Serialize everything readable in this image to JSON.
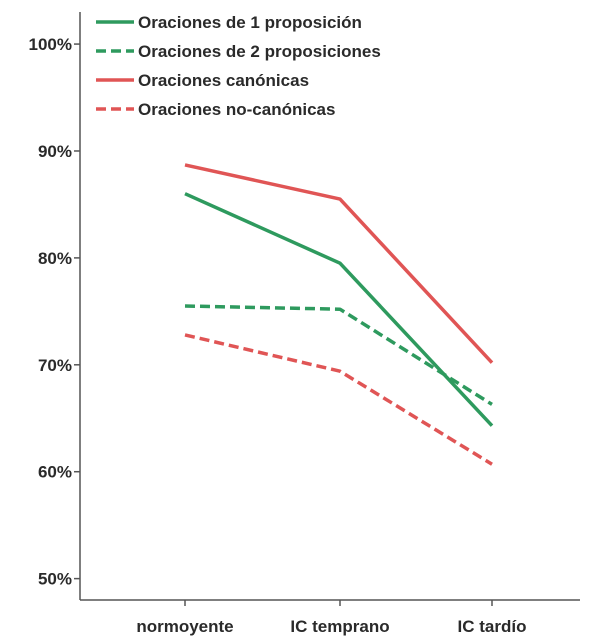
{
  "chart_data": {
    "type": "line",
    "title": "",
    "xlabel": "",
    "ylabel": "",
    "categories": [
      "normoyente",
      "IC temprano",
      "IC tardío"
    ],
    "y_ticks": [
      "50%",
      "60%",
      "70%",
      "80%",
      "90%",
      "100%"
    ],
    "ylim": [
      48,
      103
    ],
    "grid": false,
    "legend_position": "top-left",
    "series": [
      {
        "name": "Oraciones de 1 proposición",
        "values": [
          86,
          79.5,
          64.3
        ],
        "color": "#2e9a5e",
        "dashed": false
      },
      {
        "name": "Oraciones de 2 proposiciones",
        "values": [
          75.5,
          75.2,
          66.3
        ],
        "color": "#2e9a5e",
        "dashed": true
      },
      {
        "name": "Oraciones canónicas",
        "values": [
          88.7,
          85.5,
          70.2
        ],
        "color": "#e05555",
        "dashed": false
      },
      {
        "name": "Oraciones no-canónicas",
        "values": [
          72.8,
          69.4,
          60.7
        ],
        "color": "#e05555",
        "dashed": true
      }
    ]
  }
}
